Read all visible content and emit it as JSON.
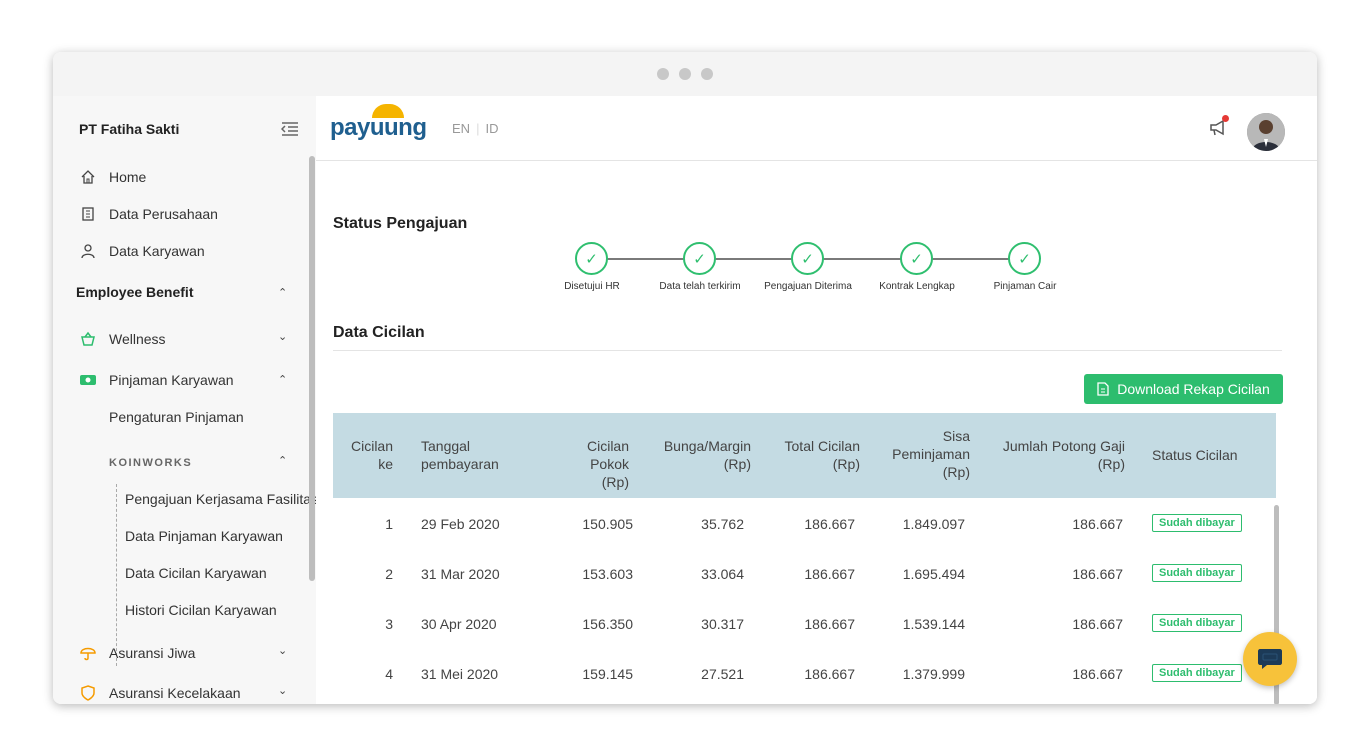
{
  "sidebar": {
    "company": "PT Fatiha Sakti",
    "items": [
      {
        "label": "Home",
        "icon": "home-icon"
      },
      {
        "label": "Data Perusahaan",
        "icon": "building-icon"
      },
      {
        "label": "Data Karyawan",
        "icon": "user-icon"
      }
    ],
    "section": "Employee Benefit",
    "benefits": [
      {
        "label": "Wellness",
        "icon": "basket-icon"
      },
      {
        "label": "Pinjaman Karyawan",
        "icon": "money-icon"
      }
    ],
    "pengaturan": "Pengaturan Pinjaman",
    "partner": "KOINWORKS",
    "sub_items": [
      "Pengajuan Kerjasama Fasilitas",
      "Data Pinjaman Karyawan",
      "Data Cicilan Karyawan",
      "Histori Cicilan Karyawan"
    ],
    "more": [
      {
        "label": "Asuransi Jiwa",
        "icon": "umbrella-icon"
      },
      {
        "label": "Asuransi Kecelakaan",
        "icon": "shield-icon"
      }
    ]
  },
  "header": {
    "logo": "payuung",
    "lang_en": "EN",
    "lang_id": "ID"
  },
  "status": {
    "title": "Status Pengajuan",
    "steps": [
      "Disetujui HR",
      "Data telah terkirim",
      "Pengajuan Diterima",
      "Kontrak Lengkap",
      "Pinjaman Cair"
    ]
  },
  "data": {
    "title": "Data Cicilan",
    "download_label": "Download Rekap Cicilan",
    "columns": {
      "c1": "Cicilan ke",
      "c2": "Tanggal pembayaran",
      "c3": "Cicilan Pokok (Rp)",
      "c4": "Bunga/Margin (Rp)",
      "c5": "Total Cicilan (Rp)",
      "c6": "Sisa Peminjaman (Rp)",
      "c7": "Jumlah Potong Gaji (Rp)",
      "c8": "Status Cicilan"
    },
    "rows": [
      {
        "no": "1",
        "date": "29 Feb 2020",
        "pokok": "150.905",
        "bunga": "35.762",
        "total": "186.667",
        "sisa": "1.849.097",
        "potong": "186.667",
        "status": "Sudah dibayar"
      },
      {
        "no": "2",
        "date": "31 Mar 2020",
        "pokok": "153.603",
        "bunga": "33.064",
        "total": "186.667",
        "sisa": "1.695.494",
        "potong": "186.667",
        "status": "Sudah dibayar"
      },
      {
        "no": "3",
        "date": "30 Apr 2020",
        "pokok": "156.350",
        "bunga": "30.317",
        "total": "186.667",
        "sisa": "1.539.144",
        "potong": "186.667",
        "status": "Sudah dibayar"
      },
      {
        "no": "4",
        "date": "31 Mei 2020",
        "pokok": "159.145",
        "bunga": "27.521",
        "total": "186.667",
        "sisa": "1.379.999",
        "potong": "186.667",
        "status": "Sudah dibayar"
      }
    ]
  },
  "colors": {
    "accent": "#2dbd6e",
    "table_header": "#c4dbe3",
    "brand": "#1f5f8f",
    "chat": "#f7c23a"
  }
}
